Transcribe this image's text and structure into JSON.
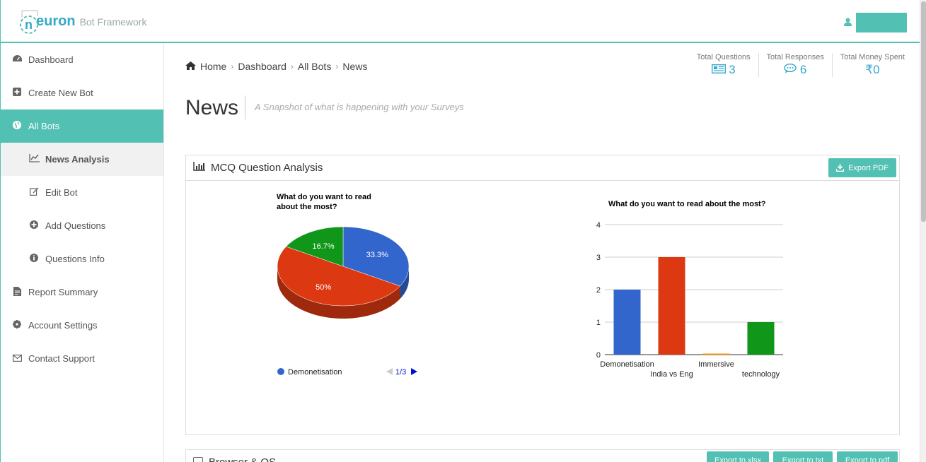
{
  "header": {
    "logo_brand": "n euron",
    "logo_sub": "Bot Framework",
    "user_name": ""
  },
  "sidebar": {
    "items": [
      {
        "label": "Dashboard",
        "icon": "dashboard-icon"
      },
      {
        "label": "Create New Bot",
        "icon": "plus-square-icon"
      },
      {
        "label": "All Bots",
        "icon": "globe-icon"
      },
      {
        "label": "News Analysis",
        "icon": "line-chart-icon"
      },
      {
        "label": "Edit Bot",
        "icon": "edit-icon"
      },
      {
        "label": "Add Questions",
        "icon": "plus-circle-icon"
      },
      {
        "label": "Questions Info",
        "icon": "info-circle-icon"
      },
      {
        "label": "Report Summary",
        "icon": "file-icon"
      },
      {
        "label": "Account Settings",
        "icon": "gear-icon"
      },
      {
        "label": "Contact Support",
        "icon": "envelope-icon"
      }
    ]
  },
  "breadcrumb": {
    "items": [
      "Home",
      "Dashboard",
      "All Bots",
      "News"
    ]
  },
  "page": {
    "title": "News",
    "subtitle": "A Snapshot of what is happening with your Surveys"
  },
  "stats": [
    {
      "label": "Total Questions",
      "value": "3",
      "icon": "newspaper-icon"
    },
    {
      "label": "Total Responses",
      "value": "6",
      "icon": "comments-icon"
    },
    {
      "label": "Total Money Spent",
      "value": "₹0",
      "icon": "rupee-icon"
    }
  ],
  "panel": {
    "title": "MCQ Question Analysis",
    "export_label": "Export PDF"
  },
  "panel2": {
    "title": "Browser & OS",
    "buttons": [
      "Export to xlsx",
      "Export to txt",
      "Export to pdf"
    ]
  },
  "colors": {
    "accent": "#52c0b2",
    "link": "#35a9c9",
    "blue": "#3366cc",
    "red": "#dc3912",
    "orange": "#ff9900",
    "green": "#109618"
  },
  "chart_data": [
    {
      "type": "pie",
      "title": "What do you want to read about the most?",
      "categories": [
        "Demonetisation",
        "India vs Eng",
        "Immersive",
        "technology"
      ],
      "values": [
        2,
        3,
        0,
        1
      ],
      "slice_labels": [
        "33.3%",
        "50%",
        "",
        "16.7%"
      ],
      "legend_visible": "Demonetisation",
      "legend_page": "1/3",
      "legend_position": "bottom",
      "style": "3d"
    },
    {
      "type": "bar",
      "title": "What do you want to read about the most?",
      "categories": [
        "Demonetisation",
        "India vs Eng",
        "Immersive",
        "technology"
      ],
      "values": [
        2,
        3,
        0,
        1
      ],
      "ylim": [
        0,
        4
      ],
      "yticks": [
        "0",
        "1",
        "2",
        "3",
        "4"
      ],
      "grid": true
    }
  ]
}
